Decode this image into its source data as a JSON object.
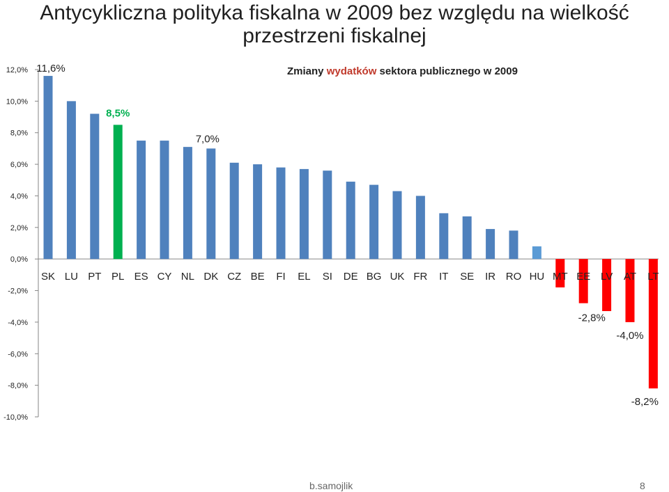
{
  "title": "Antycykliczna polityka fiskalna w 2009 bez względu na wielkość przestrzeni fiskalnej",
  "subtitle": {
    "prefix": "Zmiany ",
    "highlight": "wydatków",
    "suffix": " sektora publicznego w  2009"
  },
  "footer": {
    "author": "b.samojlik",
    "page": "8"
  },
  "colors": {
    "positive": "#4f81bd",
    "highlight": "#00b050",
    "negative": "#ff0000",
    "small_positive": "#5b9bd5",
    "highlight_label": "#00b050"
  },
  "chart_data": {
    "type": "bar",
    "categories": [
      "SK",
      "LU",
      "PT",
      "PL",
      "ES",
      "CY",
      "NL",
      "DK",
      "CZ",
      "BE",
      "FI",
      "EL",
      "SI",
      "DE",
      "BG",
      "UK",
      "FR",
      "IT",
      "SE",
      "IR",
      "RO",
      "HU",
      "MT",
      "EE",
      "LV",
      "AT",
      "LT"
    ],
    "values": [
      11.6,
      10.0,
      9.2,
      8.5,
      7.5,
      7.5,
      7.1,
      7.0,
      6.1,
      6.0,
      5.8,
      5.7,
      5.6,
      4.9,
      4.7,
      4.3,
      4.0,
      2.9,
      2.7,
      1.9,
      1.8,
      0.8,
      -1.8,
      -2.8,
      -3.3,
      -4.0,
      -8.2
    ],
    "ylim": [
      -10,
      12
    ],
    "yticks": [
      "12,0%",
      "10,0%",
      "8,0%",
      "6,0%",
      "4,0%",
      "2,0%",
      "0,0%",
      "-2,0%",
      "-4,0%",
      "-6,0%",
      "-8,0%",
      "-10,0%"
    ],
    "highlight_category": "PL",
    "data_labels": [
      {
        "category": "SK",
        "text": "11,6%"
      },
      {
        "category": "PL",
        "text": "8,5%"
      },
      {
        "category": "DK",
        "text": "7,0%"
      },
      {
        "category": "EE",
        "text": "-2,8%"
      },
      {
        "category": "AT",
        "text": "-4,0%"
      },
      {
        "category": "LT",
        "text": "-8,2%"
      }
    ]
  }
}
